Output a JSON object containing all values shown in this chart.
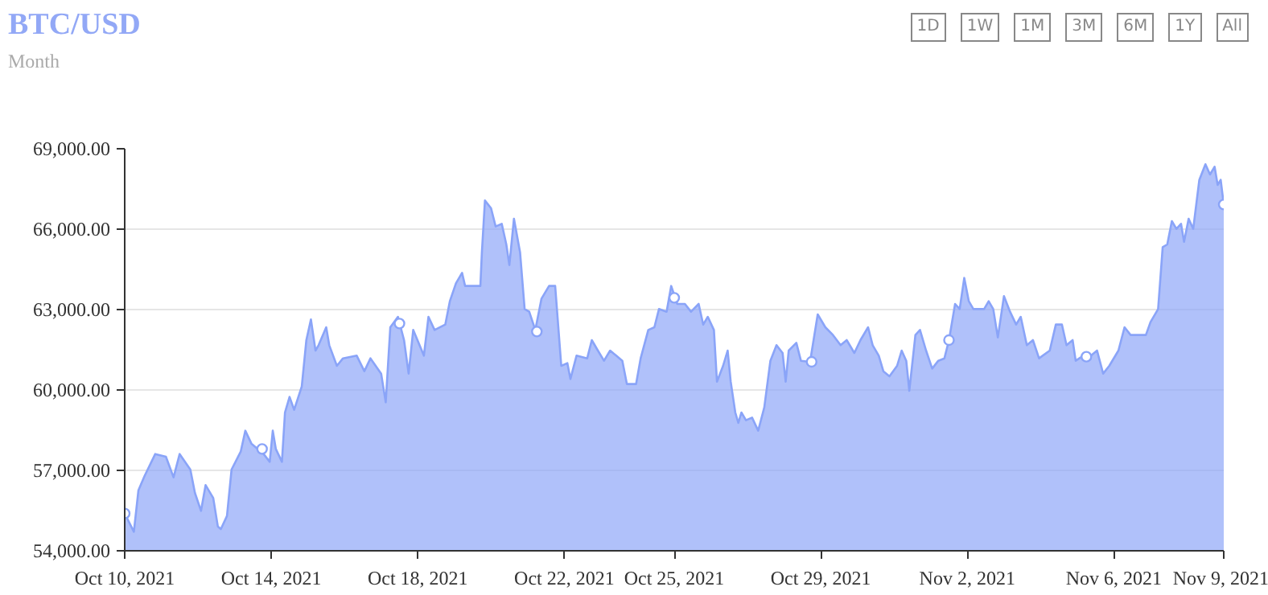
{
  "chart_data": {
    "type": "area",
    "title": "BTC/USD",
    "subtitle": "Month",
    "annotations": [
      "1D",
      "1W",
      "1M",
      "3M",
      "6M",
      "1Y",
      "All"
    ],
    "xlim": [
      "2021-10-10T00:00",
      "2021-11-09T00:00"
    ],
    "xticks": [
      {
        "value": "2021-10-10T00:00",
        "label": "Oct 10, 2021"
      },
      {
        "value": "2021-10-14T00:00",
        "label": "Oct 14, 2021"
      },
      {
        "value": "2021-10-18T00:00",
        "label": "Oct 18, 2021"
      },
      {
        "value": "2021-10-22T00:00",
        "label": "Oct 22, 2021"
      },
      {
        "value": "2021-10-25T00:00",
        "label": "Oct 25, 2021"
      },
      {
        "value": "2021-10-29T00:00",
        "label": "Oct 29, 2021"
      },
      {
        "value": "2021-11-02T00:00",
        "label": "Nov 2, 2021"
      },
      {
        "value": "2021-11-06T00:00",
        "label": "Nov 6, 2021"
      },
      {
        "value": "2021-11-09T00:00",
        "label": "Nov 9, 2021"
      }
    ],
    "ylim": [
      54000,
      69000
    ],
    "yticks": [
      {
        "value": 54000,
        "label": "54,000.00"
      },
      {
        "value": 57000,
        "label": "57,000.00"
      },
      {
        "value": 60000,
        "label": "60,000.00"
      },
      {
        "value": 63000,
        "label": "63,000.00"
      },
      {
        "value": 66000,
        "label": "66,000.00"
      },
      {
        "value": 69000,
        "label": "69,000.00"
      }
    ],
    "grid": "y",
    "series": [
      {
        "color": "#8aa4f8",
        "x": [
          "2021-10-10T00:00",
          "2021-10-10T06:00",
          "2021-10-10T09:00",
          "2021-10-10T13:00",
          "2021-10-10T20:00",
          "2021-10-11T03:00",
          "2021-10-11T08:00",
          "2021-10-11T12:00",
          "2021-10-11T19:00",
          "2021-10-11T22:00",
          "2021-10-12T02:00",
          "2021-10-12T05:00",
          "2021-10-12T10:00",
          "2021-10-12T13:00",
          "2021-10-12T15:00",
          "2021-10-12T19:00",
          "2021-10-12T22:00",
          "2021-10-13T04:00",
          "2021-10-13T07:00",
          "2021-10-13T11:00",
          "2021-10-13T19:00",
          "2021-10-13T23:00",
          "2021-10-14T01:00",
          "2021-10-14T03:00",
          "2021-10-14T07:00",
          "2021-10-14T09:00",
          "2021-10-14T12:00",
          "2021-10-14T15:00",
          "2021-10-14T20:00",
          "2021-10-14T23:00",
          "2021-10-15T02:00",
          "2021-10-15T05:00",
          "2021-10-15T07:00",
          "2021-10-15T12:00",
          "2021-10-15T14:00",
          "2021-10-15T19:00",
          "2021-10-15T23:00",
          "2021-10-16T08:00",
          "2021-10-16T13:00",
          "2021-10-16T17:00",
          "2021-10-17T00:00",
          "2021-10-17T03:00",
          "2021-10-17T06:00",
          "2021-10-17T11:00",
          "2021-10-17T15:00",
          "2021-10-17T18:00",
          "2021-10-17T21:00",
          "2021-10-18T04:00",
          "2021-10-18T07:00",
          "2021-10-18T11:00",
          "2021-10-18T18:00",
          "2021-10-18T21:00",
          "2021-10-19T01:00",
          "2021-10-19T05:00",
          "2021-10-19T07:00",
          "2021-10-19T17:00",
          "2021-10-19T18:00",
          "2021-10-19T20:00",
          "2021-10-20T00:00",
          "2021-10-20T03:00",
          "2021-10-20T07:00",
          "2021-10-20T10:00",
          "2021-10-20T12:00",
          "2021-10-20T15:00",
          "2021-10-20T19:00",
          "2021-10-20T22:00",
          "2021-10-21T01:00",
          "2021-10-21T05:00",
          "2021-10-21T09:00",
          "2021-10-21T14:00",
          "2021-10-21T18:00",
          "2021-10-21T22:00",
          "2021-10-22T02:00",
          "2021-10-22T04:00",
          "2021-10-22T08:00",
          "2021-10-22T15:00",
          "2021-10-22T18:00",
          "2021-10-22T22:00",
          "2021-10-23T02:00",
          "2021-10-23T06:00",
          "2021-10-23T10:00",
          "2021-10-23T14:00",
          "2021-10-23T17:00",
          "2021-10-23T23:00",
          "2021-10-24T02:00",
          "2021-10-24T07:00",
          "2021-10-24T11:00",
          "2021-10-24T14:00",
          "2021-10-24T19:00",
          "2021-10-24T22:00",
          "2021-10-25T02:00",
          "2021-10-25T07:00",
          "2021-10-25T11:00",
          "2021-10-25T16:00",
          "2021-10-25T19:00",
          "2021-10-25T22:00",
          "2021-10-26T02:00",
          "2021-10-26T04:00",
          "2021-10-26T08:00",
          "2021-10-26T11:00",
          "2021-10-26T13:00",
          "2021-10-26T16:00",
          "2021-10-26T18:00",
          "2021-10-26T20:00",
          "2021-10-26T23:00",
          "2021-10-27T03:00",
          "2021-10-27T07:00",
          "2021-10-27T11:00",
          "2021-10-27T15:00",
          "2021-10-27T19:00",
          "2021-10-27T23:00",
          "2021-10-28T01:00",
          "2021-10-28T03:00",
          "2021-10-28T08:00",
          "2021-10-28T11:00",
          "2021-10-28T17:00",
          "2021-10-28T22:00",
          "2021-10-29T03:00",
          "2021-10-29T08:00",
          "2021-10-29T13:00",
          "2021-10-29T17:00",
          "2021-10-29T22:00",
          "2021-10-30T02:00",
          "2021-10-30T07:00",
          "2021-10-30T10:00",
          "2021-10-30T14:00",
          "2021-10-30T17:00",
          "2021-10-30T21:00",
          "2021-10-31T02:00",
          "2021-10-31T05:00",
          "2021-10-31T08:00",
          "2021-10-31T10:00",
          "2021-10-31T14:00",
          "2021-10-31T17:00",
          "2021-10-31T21:00",
          "2021-11-01T01:00",
          "2021-11-01T05:00",
          "2021-11-01T09:00",
          "2021-11-01T12:00",
          "2021-11-01T16:00",
          "2021-11-01T19:00",
          "2021-11-01T22:00",
          "2021-11-02T01:00",
          "2021-11-02T04:00",
          "2021-11-02T11:00",
          "2021-11-02T14:00",
          "2021-11-02T17:00",
          "2021-11-02T20:00",
          "2021-11-03T00:00",
          "2021-11-03T04:00",
          "2021-11-03T08:00",
          "2021-11-03T11:00",
          "2021-11-03T15:00",
          "2021-11-03T19:00",
          "2021-11-03T23:00",
          "2021-11-04T06:00",
          "2021-11-04T10:00",
          "2021-11-04T14:00",
          "2021-11-04T17:00",
          "2021-11-04T21:00",
          "2021-11-04T23:00",
          "2021-11-05T04:00",
          "2021-11-05T09:00",
          "2021-11-05T13:00",
          "2021-11-05T17:00",
          "2021-11-05T21:00",
          "2021-11-06T03:00",
          "2021-11-06T07:00",
          "2021-11-06T11:00",
          "2021-11-06T21:00",
          "2021-11-07T00:00",
          "2021-11-07T05:00",
          "2021-11-07T08:00",
          "2021-11-07T11:00",
          "2021-11-07T14:00",
          "2021-11-07T17:00",
          "2021-11-07T20:00",
          "2021-11-07T22:00",
          "2021-11-08T01:00",
          "2021-11-08T04:00",
          "2021-11-08T08:00",
          "2021-11-08T12:00",
          "2021-11-08T15:00",
          "2021-11-08T18:00",
          "2021-11-08T20:00",
          "2021-11-08T22:00",
          "2021-11-09T00:00"
        ],
        "values": [
          55390,
          54710,
          56260,
          56790,
          57610,
          57510,
          56740,
          57610,
          57030,
          56160,
          55490,
          56450,
          55970,
          54910,
          54810,
          55300,
          57030,
          57700,
          58480,
          58000,
          57610,
          57320,
          58480,
          57800,
          57320,
          59160,
          59740,
          59260,
          60130,
          61860,
          62630,
          61470,
          61670,
          62340,
          61670,
          60900,
          61180,
          61280,
          60700,
          61180,
          60610,
          59540,
          62340,
          62730,
          61860,
          60610,
          62240,
          61280,
          62730,
          62240,
          62440,
          63310,
          63980,
          64370,
          63880,
          63880,
          65140,
          67070,
          66780,
          66100,
          66200,
          65430,
          64660,
          66390,
          65140,
          63020,
          62920,
          62240,
          63400,
          63880,
          63880,
          60900,
          61000,
          60410,
          61280,
          61180,
          61860,
          61470,
          61090,
          61470,
          61280,
          61090,
          60220,
          60220,
          61180,
          62240,
          62340,
          63020,
          62920,
          63880,
          63210,
          63210,
          62920,
          63210,
          62440,
          62730,
          62240,
          60310,
          60900,
          61470,
          60310,
          59160,
          58770,
          59160,
          58870,
          58970,
          58480,
          59350,
          61090,
          61670,
          61380,
          60310,
          61470,
          61760,
          61090,
          61050,
          62820,
          62340,
          62050,
          61670,
          61860,
          61380,
          61860,
          62340,
          61670,
          61280,
          60700,
          60510,
          60900,
          61470,
          61090,
          59970,
          62050,
          62240,
          61470,
          60800,
          61090,
          61180,
          61860,
          63210,
          63020,
          64180,
          63310,
          63020,
          63020,
          63310,
          63020,
          61960,
          63500,
          62920,
          62440,
          62730,
          61670,
          61860,
          61180,
          61470,
          62440,
          62440,
          61670,
          61860,
          61090,
          61280,
          61280,
          61470,
          60610,
          60900,
          61470,
          62340,
          62050,
          62050,
          62530,
          63020,
          65330,
          65430,
          66300,
          66010,
          66200,
          65530,
          66390,
          66010,
          67840,
          68420,
          68040,
          68330,
          67650,
          67840,
          66920
        ]
      },
      {
        "type": "scatter",
        "color": "#ffffff",
        "marker": "circle",
        "x": [
          "2021-10-10T00:00",
          "2021-10-13T18:00",
          "2021-10-17T12:00",
          "2021-10-21T06:00",
          "2021-10-25T00:00",
          "2021-10-28T18:00",
          "2021-11-01T12:00",
          "2021-11-05T06:00",
          "2021-11-09T00:00"
        ],
        "values": [
          55390,
          57800,
          62480,
          62180,
          63440,
          61050,
          61860,
          61240,
          66920
        ]
      }
    ]
  }
}
